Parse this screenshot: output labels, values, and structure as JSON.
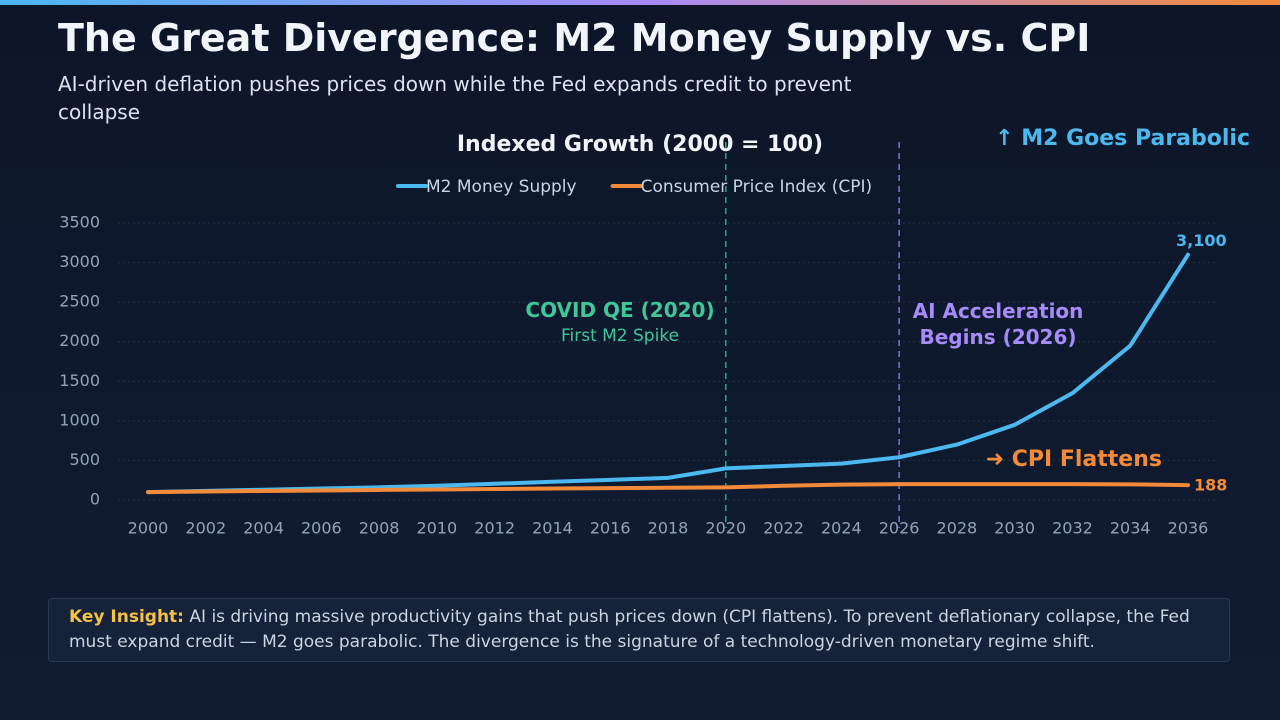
{
  "header": {
    "title": "The Great Divergence: M2 Money Supply vs. CPI",
    "subtitle": "AI-driven deflation pushes prices down while the Fed expands credit to prevent collapse"
  },
  "chart_data": {
    "type": "line",
    "title": "Indexed Growth (2000 = 100)",
    "x": [
      2000,
      2002,
      2004,
      2006,
      2008,
      2010,
      2012,
      2014,
      2016,
      2018,
      2020,
      2022,
      2024,
      2026,
      2028,
      2030,
      2032,
      2034,
      2036
    ],
    "series": [
      {
        "name": "M2 Money Supply",
        "color": "#4cb8f0",
        "values": [
          100,
          115,
          130,
          145,
          160,
          180,
          205,
          230,
          255,
          280,
          400,
          430,
          460,
          540,
          700,
          950,
          1350,
          1950,
          3100
        ],
        "value_labels": [
          null,
          null,
          null,
          null,
          null,
          null,
          null,
          null,
          null,
          null,
          null,
          null,
          null,
          null,
          null,
          null,
          null,
          null,
          "3,100"
        ]
      },
      {
        "name": "Consumer Price Index (CPI)",
        "color": "#f28a3a",
        "values": [
          100,
          107,
          114,
          120,
          127,
          133,
          139,
          145,
          150,
          155,
          160,
          180,
          195,
          200,
          200,
          200,
          200,
          198,
          188
        ]
      }
    ],
    "xlim": [
      2000,
      2036
    ],
    "xticks": [
      2000,
      2002,
      2004,
      2006,
      2008,
      2010,
      2012,
      2014,
      2016,
      2018,
      2020,
      2022,
      2024,
      2026,
      2028,
      2030,
      2032,
      2034,
      2036
    ],
    "ylim": [
      0,
      3500
    ],
    "yticks": [
      0,
      500,
      1000,
      1500,
      2000,
      2500,
      3000,
      3500
    ],
    "grid": true,
    "annotations": [
      {
        "x": 2020,
        "text": "COVID QE (2020)",
        "subtext": "First M2 Spike",
        "color": "#3fc79a"
      },
      {
        "x": 2026,
        "text": "AI Acceleration Begins (2026)",
        "color": "#a78bfa"
      },
      {
        "text": "↑ M2 Goes Parabolic",
        "color": "#4cb8f0"
      },
      {
        "text": "➜ CPI Flattens",
        "color": "#f28a3a"
      }
    ]
  },
  "insight": {
    "label": "Key Insight:",
    "text": "AI is driving massive productivity gains that push prices down (CPI flattens). To prevent deflationary collapse, the Fed must expand credit — M2 goes parabolic. The divergence is the signature of a technology-driven monetary regime shift."
  }
}
